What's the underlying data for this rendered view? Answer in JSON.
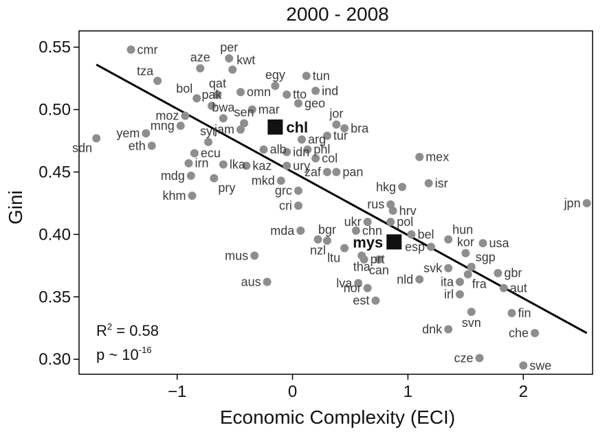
{
  "chart_data": {
    "type": "scatter",
    "title": "2000 - 2008",
    "xlabel": "Economic Complexity (ECI)",
    "ylabel": "Gini",
    "xlim": [
      -1.85,
      2.6
    ],
    "ylim": [
      0.288,
      0.563
    ],
    "xticks": [
      -1,
      0,
      1,
      2
    ],
    "xtick_labels": [
      "−1",
      "0",
      "1",
      "2"
    ],
    "yticks": [
      0.3,
      0.35,
      0.4,
      0.45,
      0.5,
      0.55
    ],
    "ytick_labels": [
      "0.30",
      "0.35",
      "0.40",
      "0.45",
      "0.50",
      "0.55"
    ],
    "grid": false,
    "legend": "none",
    "point_color": "#8e8e8e",
    "highlight_color": "#111111",
    "line_color": "#000000",
    "fit_line": {
      "x": [
        -1.7,
        2.55
      ],
      "y": [
        0.536,
        0.321
      ]
    },
    "annotations": {
      "r2_main": "R",
      "r2_sup": "2",
      "r2_value": " = 0.58",
      "p_main": "p ~ 10",
      "p_sup": "-16"
    },
    "points": [
      {
        "label": "cmr",
        "x": -1.4,
        "y": 0.548,
        "lpos": "right"
      },
      {
        "label": "tza",
        "x": -1.17,
        "y": 0.523,
        "lpos": "upleft"
      },
      {
        "label": "per",
        "x": -0.55,
        "y": 0.541,
        "lpos": "up"
      },
      {
        "label": "aze",
        "x": -0.8,
        "y": 0.533,
        "lpos": "up"
      },
      {
        "label": "kwt",
        "x": -0.52,
        "y": 0.532,
        "lpos": "upright"
      },
      {
        "label": "qat",
        "x": -0.65,
        "y": 0.512,
        "lpos": "up"
      },
      {
        "label": "bol",
        "x": -0.83,
        "y": 0.509,
        "lpos": "upleft"
      },
      {
        "label": "egy",
        "x": -0.15,
        "y": 0.519,
        "lpos": "up"
      },
      {
        "label": "tun",
        "x": 0.12,
        "y": 0.527,
        "lpos": "right"
      },
      {
        "label": "ind",
        "x": 0.2,
        "y": 0.515,
        "lpos": "right"
      },
      {
        "label": "omn",
        "x": -0.45,
        "y": 0.514,
        "lpos": "right"
      },
      {
        "label": "tto",
        "x": -0.05,
        "y": 0.512,
        "lpos": "right"
      },
      {
        "label": "pak",
        "x": -0.7,
        "y": 0.503,
        "lpos": "up"
      },
      {
        "label": "geo",
        "x": 0.05,
        "y": 0.505,
        "lpos": "right"
      },
      {
        "label": "mar",
        "x": -0.35,
        "y": 0.5,
        "lpos": "right"
      },
      {
        "label": "moz",
        "x": -0.93,
        "y": 0.495,
        "lpos": "left"
      },
      {
        "label": "bwa",
        "x": -0.6,
        "y": 0.493,
        "lpos": "up"
      },
      {
        "label": "sen",
        "x": -0.42,
        "y": 0.489,
        "lpos": "up"
      },
      {
        "label": "jor",
        "x": 0.38,
        "y": 0.488,
        "lpos": "up"
      },
      {
        "label": "mng",
        "x": -0.97,
        "y": 0.487,
        "lpos": "left"
      },
      {
        "label": "bra",
        "x": 0.45,
        "y": 0.485,
        "lpos": "right"
      },
      {
        "label": "jam",
        "x": -0.45,
        "y": 0.484,
        "lpos": "left"
      },
      {
        "label": "tur",
        "x": 0.3,
        "y": 0.479,
        "lpos": "right"
      },
      {
        "label": "yem",
        "x": -1.27,
        "y": 0.481,
        "lpos": "left"
      },
      {
        "label": "arg",
        "x": 0.08,
        "y": 0.476,
        "lpos": "right"
      },
      {
        "label": "sdn",
        "x": -1.7,
        "y": 0.477,
        "lpos": "downleft"
      },
      {
        "label": "syr",
        "x": -0.73,
        "y": 0.474,
        "lpos": "up"
      },
      {
        "label": "phl",
        "x": 0.13,
        "y": 0.468,
        "lpos": "right"
      },
      {
        "label": "idn",
        "x": -0.05,
        "y": 0.466,
        "lpos": "right"
      },
      {
        "label": "alb",
        "x": -0.25,
        "y": 0.468,
        "lpos": "right"
      },
      {
        "label": "eth",
        "x": -1.22,
        "y": 0.471,
        "lpos": "left"
      },
      {
        "label": "ecu",
        "x": -0.85,
        "y": 0.465,
        "lpos": "right"
      },
      {
        "label": "col",
        "x": 0.2,
        "y": 0.461,
        "lpos": "right"
      },
      {
        "label": "irn",
        "x": -0.9,
        "y": 0.457,
        "lpos": "right"
      },
      {
        "label": "lka",
        "x": -0.6,
        "y": 0.456,
        "lpos": "right"
      },
      {
        "label": "kaz",
        "x": -0.4,
        "y": 0.455,
        "lpos": "right"
      },
      {
        "label": "ury",
        "x": -0.05,
        "y": 0.455,
        "lpos": "right"
      },
      {
        "label": "pan",
        "x": 0.38,
        "y": 0.45,
        "lpos": "right"
      },
      {
        "label": "zaf",
        "x": 0.3,
        "y": 0.45,
        "lpos": "left"
      },
      {
        "label": "mdg",
        "x": -0.88,
        "y": 0.447,
        "lpos": "left"
      },
      {
        "label": "pry",
        "x": -0.68,
        "y": 0.445,
        "lpos": "downright"
      },
      {
        "label": "mkd",
        "x": -0.1,
        "y": 0.443,
        "lpos": "left"
      },
      {
        "label": "hkg",
        "x": 0.95,
        "y": 0.438,
        "lpos": "left"
      },
      {
        "label": "grc",
        "x": 0.05,
        "y": 0.435,
        "lpos": "left"
      },
      {
        "label": "khm",
        "x": -0.87,
        "y": 0.431,
        "lpos": "left"
      },
      {
        "label": "mex",
        "x": 1.1,
        "y": 0.462,
        "lpos": "right"
      },
      {
        "label": "isr",
        "x": 1.18,
        "y": 0.441,
        "lpos": "right"
      },
      {
        "label": "cri",
        "x": 0.05,
        "y": 0.423,
        "lpos": "left"
      },
      {
        "label": "rus",
        "x": 0.85,
        "y": 0.424,
        "lpos": "left"
      },
      {
        "label": "hrv",
        "x": 0.87,
        "y": 0.419,
        "lpos": "right"
      },
      {
        "label": "ukr",
        "x": 0.65,
        "y": 0.41,
        "lpos": "left"
      },
      {
        "label": "pol",
        "x": 0.85,
        "y": 0.41,
        "lpos": "right"
      },
      {
        "label": "chn",
        "x": 0.55,
        "y": 0.403,
        "lpos": "right"
      },
      {
        "label": "bgr",
        "x": 0.3,
        "y": 0.395,
        "lpos": "up"
      },
      {
        "label": "bel",
        "x": 1.03,
        "y": 0.4,
        "lpos": "right"
      },
      {
        "label": "hun",
        "x": 1.35,
        "y": 0.396,
        "lpos": "upright"
      },
      {
        "label": "kor",
        "x": 1.5,
        "y": 0.385,
        "lpos": "up"
      },
      {
        "label": "usa",
        "x": 1.65,
        "y": 0.393,
        "lpos": "right"
      },
      {
        "label": "mda",
        "x": 0.07,
        "y": 0.403,
        "lpos": "left"
      },
      {
        "label": "nzl",
        "x": 0.22,
        "y": 0.396,
        "lpos": "down"
      },
      {
        "label": "ltu",
        "x": 0.45,
        "y": 0.389,
        "lpos": "downleft"
      },
      {
        "label": "prt",
        "x": 0.62,
        "y": 0.38,
        "lpos": "right"
      },
      {
        "label": "esp",
        "x": 1.2,
        "y": 0.39,
        "lpos": "left"
      },
      {
        "label": "mus",
        "x": -0.33,
        "y": 0.383,
        "lpos": "left"
      },
      {
        "label": "tha",
        "x": 0.6,
        "y": 0.383,
        "lpos": "down"
      },
      {
        "label": "can",
        "x": 0.75,
        "y": 0.38,
        "lpos": "down"
      },
      {
        "label": "svk",
        "x": 1.35,
        "y": 0.373,
        "lpos": "left"
      },
      {
        "label": "sgp",
        "x": 1.55,
        "y": 0.374,
        "lpos": "upright"
      },
      {
        "label": "gbr",
        "x": 1.78,
        "y": 0.369,
        "lpos": "right"
      },
      {
        "label": "aus",
        "x": -0.22,
        "y": 0.362,
        "lpos": "left"
      },
      {
        "label": "lva",
        "x": 0.57,
        "y": 0.361,
        "lpos": "left"
      },
      {
        "label": "nld",
        "x": 1.1,
        "y": 0.364,
        "lpos": "left"
      },
      {
        "label": "ita",
        "x": 1.45,
        "y": 0.362,
        "lpos": "left"
      },
      {
        "label": "fra",
        "x": 1.52,
        "y": 0.368,
        "lpos": "downright"
      },
      {
        "label": "aut",
        "x": 1.83,
        "y": 0.357,
        "lpos": "right"
      },
      {
        "label": "nor",
        "x": 0.65,
        "y": 0.357,
        "lpos": "left"
      },
      {
        "label": "irl",
        "x": 1.45,
        "y": 0.352,
        "lpos": "left"
      },
      {
        "label": "est",
        "x": 0.72,
        "y": 0.347,
        "lpos": "left"
      },
      {
        "label": "fin",
        "x": 1.9,
        "y": 0.337,
        "lpos": "right"
      },
      {
        "label": "svn",
        "x": 1.55,
        "y": 0.338,
        "lpos": "down"
      },
      {
        "label": "dnk",
        "x": 1.35,
        "y": 0.324,
        "lpos": "left"
      },
      {
        "label": "che",
        "x": 2.1,
        "y": 0.321,
        "lpos": "left"
      },
      {
        "label": "cze",
        "x": 1.62,
        "y": 0.301,
        "lpos": "left"
      },
      {
        "label": "swe",
        "x": 2.0,
        "y": 0.295,
        "lpos": "right"
      },
      {
        "label": "jpn",
        "x": 2.55,
        "y": 0.425,
        "lpos": "left"
      }
    ],
    "highlights": [
      {
        "label": "chl",
        "x": -0.15,
        "y": 0.486,
        "lpos": "right"
      },
      {
        "label": "mys",
        "x": 0.88,
        "y": 0.394,
        "lpos": "left"
      }
    ]
  }
}
